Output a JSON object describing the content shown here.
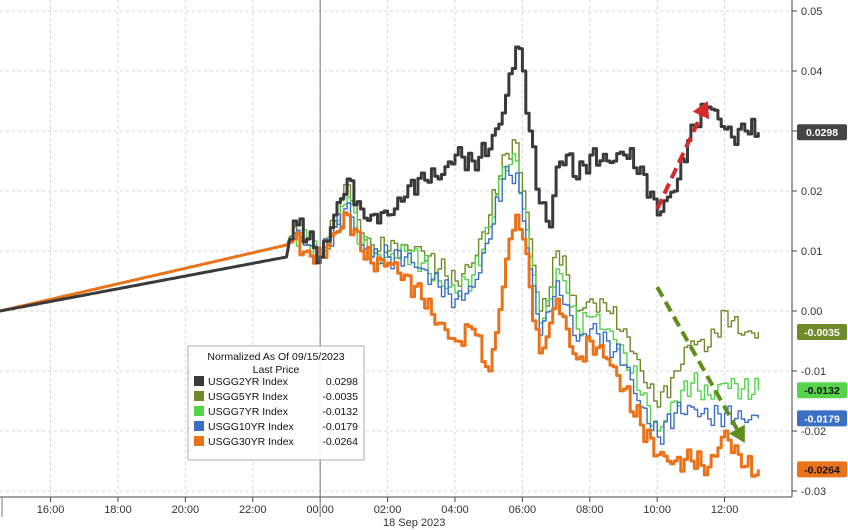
{
  "chart_data": {
    "type": "line",
    "legend": {
      "title": "Normalized As Of 09/15/2023",
      "subtitle": "Last Price",
      "placement": "bottom-left",
      "entries": [
        {
          "name": "USGG2YR Index",
          "value": "0.0298"
        },
        {
          "name": "USGG5YR Index",
          "value": "-0.0035"
        },
        {
          "name": "USGG7YR Index",
          "value": "-0.0132"
        },
        {
          "name": "USGG10YR Index",
          "value": "-0.0179"
        },
        {
          "name": "USGG30YR Index",
          "value": "-0.0264"
        }
      ]
    },
    "date_label": "18 Sep 2023",
    "x_ticks": [
      "16:00",
      "18:00",
      "20:00",
      "22:00",
      "00:00",
      "02:00",
      "04:00",
      "06:00",
      "08:00",
      "10:00",
      "12:00"
    ],
    "y_ticks": [
      "0.05",
      "0.04",
      "0.03",
      "0.02",
      "0.01",
      "0.00",
      "-0.01",
      "-0.02",
      "-0.03"
    ],
    "ylim": [
      -0.031,
      0.051
    ],
    "grid": true,
    "x_unit_note": "hours",
    "x_range": [
      -9.5,
      14
    ],
    "last_tags": [
      {
        "series": "USGG2YR Index",
        "text": "0.0298",
        "y": 0.0298
      },
      {
        "series": "USGG5YR Index",
        "text": "-0.0035",
        "y": -0.0035
      },
      {
        "series": "USGG7YR Index",
        "text": "-0.0132",
        "y": -0.0132
      },
      {
        "series": "USGG10YR Index",
        "text": "-0.0179",
        "y": -0.0179
      },
      {
        "series": "USGG30YR Index",
        "text": "-0.0264",
        "y": -0.0264
      }
    ],
    "series": [
      {
        "name": "USGG2YR Index",
        "color": "#3a3a3a",
        "x": [
          -9.5,
          -1.0,
          -0.8,
          -0.4,
          0,
          0.4,
          0.8,
          1.2,
          1.5,
          2.0,
          2.5,
          3.0,
          3.5,
          4.0,
          4.5,
          5.0,
          5.4,
          5.8,
          6.0,
          6.2,
          6.5,
          6.8,
          7.0,
          7.3,
          7.6,
          8.0,
          8.5,
          9.0,
          9.5,
          10.0,
          10.3,
          10.6,
          11.0,
          11.5,
          11.8,
          12.2,
          12.6,
          13.0
        ],
        "y": [
          0.0,
          0.009,
          0.015,
          0.012,
          0.009,
          0.016,
          0.022,
          0.017,
          0.016,
          0.016,
          0.019,
          0.023,
          0.022,
          0.026,
          0.025,
          0.027,
          0.033,
          0.044,
          0.04,
          0.03,
          0.018,
          0.014,
          0.024,
          0.026,
          0.022,
          0.026,
          0.025,
          0.026,
          0.024,
          0.016,
          0.019,
          0.022,
          0.031,
          0.034,
          0.032,
          0.029,
          0.03,
          0.0298
        ]
      },
      {
        "name": "USGG5YR Index",
        "color": "#6e8a2a",
        "x": [
          -9.5,
          -1.0,
          -0.8,
          -0.4,
          0,
          0.4,
          0.8,
          1.2,
          1.5,
          2.0,
          2.5,
          3.0,
          3.5,
          4.0,
          4.5,
          5.0,
          5.4,
          5.8,
          6.0,
          6.2,
          6.5,
          6.8,
          7.0,
          7.3,
          7.6,
          8.0,
          8.5,
          9.0,
          9.5,
          10.0,
          10.5,
          11.0,
          11.5,
          12.0,
          12.5,
          13.0
        ],
        "y": [
          0.0,
          0.011,
          0.014,
          0.011,
          0.009,
          0.015,
          0.021,
          0.013,
          0.011,
          0.01,
          0.011,
          0.01,
          0.007,
          0.005,
          0.008,
          0.016,
          0.026,
          0.028,
          0.02,
          0.012,
          0.0,
          0.004,
          0.01,
          0.006,
          0.0,
          0.002,
          0.0,
          -0.003,
          -0.01,
          -0.016,
          -0.01,
          -0.005,
          -0.006,
          0.0,
          -0.004,
          -0.0035
        ]
      },
      {
        "name": "USGG7YR Index",
        "color": "#55d34a",
        "x": [
          -9.5,
          -1.0,
          -0.8,
          -0.4,
          0,
          0.4,
          0.8,
          1.2,
          1.5,
          2.0,
          2.5,
          3.0,
          3.5,
          4.0,
          4.5,
          5.0,
          5.4,
          5.8,
          6.0,
          6.2,
          6.5,
          6.8,
          7.0,
          7.3,
          7.6,
          8.0,
          8.5,
          9.0,
          9.5,
          10.0,
          10.5,
          11.0,
          11.5,
          12.0,
          12.5,
          13.0
        ],
        "y": [
          0.0,
          0.011,
          0.013,
          0.011,
          0.009,
          0.014,
          0.019,
          0.011,
          0.009,
          0.009,
          0.01,
          0.008,
          0.005,
          0.003,
          0.006,
          0.014,
          0.024,
          0.025,
          0.017,
          0.009,
          -0.002,
          0.002,
          0.007,
          0.003,
          -0.003,
          -0.001,
          -0.003,
          -0.007,
          -0.014,
          -0.02,
          -0.015,
          -0.012,
          -0.014,
          -0.012,
          -0.013,
          -0.0132
        ]
      },
      {
        "name": "USGG10YR Index",
        "color": "#3a6fc2",
        "x": [
          -9.5,
          -1.0,
          -0.8,
          -0.4,
          0,
          0.4,
          0.8,
          1.2,
          1.5,
          2.0,
          2.5,
          3.0,
          3.5,
          4.0,
          4.5,
          5.0,
          5.4,
          5.8,
          6.0,
          6.2,
          6.5,
          6.8,
          7.0,
          7.3,
          7.6,
          8.0,
          8.5,
          9.0,
          9.5,
          10.0,
          10.5,
          11.0,
          11.5,
          12.0,
          12.5,
          13.0
        ],
        "y": [
          0.0,
          0.011,
          0.013,
          0.011,
          0.009,
          0.014,
          0.018,
          0.011,
          0.009,
          0.009,
          0.009,
          0.007,
          0.004,
          0.002,
          0.004,
          0.012,
          0.022,
          0.023,
          0.015,
          0.007,
          -0.004,
          0.0,
          0.005,
          0.001,
          -0.005,
          -0.003,
          -0.005,
          -0.009,
          -0.016,
          -0.021,
          -0.017,
          -0.016,
          -0.018,
          -0.017,
          -0.018,
          -0.0179
        ]
      },
      {
        "name": "USGG30YR Index",
        "color": "#e8731a",
        "x": [
          -9.5,
          -1.0,
          -0.8,
          -0.4,
          0,
          0.4,
          0.8,
          1.2,
          1.5,
          2.0,
          2.5,
          3.0,
          3.5,
          4.0,
          4.5,
          5.0,
          5.4,
          5.6,
          5.8,
          6.0,
          6.2,
          6.5,
          6.8,
          7.0,
          7.3,
          7.6,
          8.0,
          8.5,
          9.0,
          9.5,
          10.0,
          10.5,
          11.0,
          11.5,
          12.0,
          12.5,
          13.0
        ],
        "y": [
          0.0,
          0.011,
          0.012,
          0.01,
          0.009,
          0.013,
          0.016,
          0.01,
          0.008,
          0.008,
          0.006,
          0.002,
          -0.002,
          -0.005,
          -0.003,
          -0.01,
          0.004,
          0.012,
          0.016,
          0.012,
          0.004,
          -0.007,
          -0.002,
          0.002,
          -0.003,
          -0.008,
          -0.005,
          -0.008,
          -0.013,
          -0.019,
          -0.024,
          -0.025,
          -0.025,
          -0.026,
          -0.02,
          -0.026,
          -0.0264
        ]
      }
    ],
    "arrows": [
      {
        "color": "#d42a2a",
        "from": [
          10.0,
          0.017
        ],
        "to": [
          11.5,
          0.035
        ]
      },
      {
        "color": "#5e8f1e",
        "from": [
          10.0,
          0.004
        ],
        "to": [
          12.6,
          -0.022
        ]
      }
    ]
  }
}
